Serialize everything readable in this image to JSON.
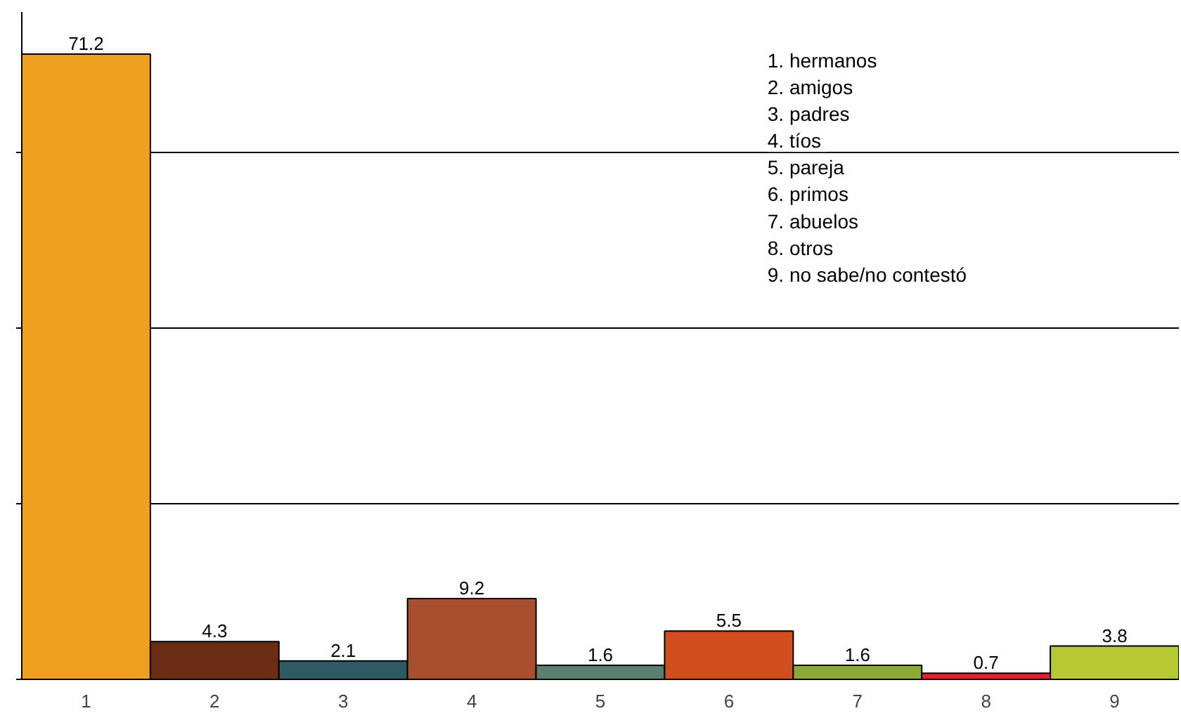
{
  "chart_data": {
    "type": "bar",
    "categories": [
      "1",
      "2",
      "3",
      "4",
      "5",
      "6",
      "7",
      "8",
      "9"
    ],
    "values": [
      71.2,
      4.3,
      2.1,
      9.2,
      1.6,
      5.5,
      1.6,
      0.7,
      3.8
    ],
    "colors": [
      "#f0a020",
      "#6b2e14",
      "#2f5a63",
      "#a94e2e",
      "#5b7f6e",
      "#d24e1e",
      "#8aab33",
      "#e8202a",
      "#b5c935"
    ],
    "ylim": [
      0,
      76
    ],
    "yticks": [
      {
        "value": 0,
        "label": null
      },
      {
        "value": 20,
        "label": null
      },
      {
        "value": 40,
        "label": null
      },
      {
        "value": 60,
        "label": null
      }
    ],
    "tick_labels": "x",
    "grid": "y",
    "data_labels": true,
    "annotations": [
      "1.  hermanos",
      "2.  amigos",
      "3.  padres",
      "4.  tíos",
      "5.  pareja",
      "6.  primos",
      "7.  abuelos",
      "8.  otros",
      "9.  no sabe/no contestó"
    ]
  }
}
